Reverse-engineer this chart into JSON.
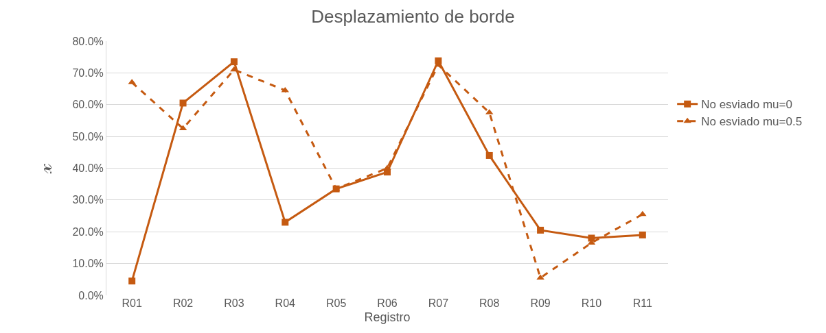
{
  "chart_data": {
    "type": "line",
    "title": "Desplazamiento de borde",
    "xlabel": "Registro",
    "ylabel": "𝓍",
    "categories": [
      "R01",
      "R02",
      "R03",
      "R04",
      "R05",
      "R06",
      "R07",
      "R08",
      "R09",
      "R10",
      "R11"
    ],
    "series": [
      {
        "name": "No esviado mu=0",
        "color": "#c55a11",
        "marker": "square",
        "line_style": "solid",
        "values": [
          4.5,
          60.5,
          73.5,
          23,
          33.5,
          38.8,
          73.8,
          44,
          20.5,
          18,
          19
        ]
      },
      {
        "name": "No esviado mu=0.5",
        "color": "#c55a11",
        "marker": "triangle",
        "line_style": "dashed",
        "values": [
          67,
          52.5,
          71,
          64.5,
          33.5,
          40,
          72.5,
          57.5,
          5.5,
          16.5,
          25.5
        ]
      }
    ],
    "ylim": [
      0,
      80
    ],
    "yticks": [
      {
        "value": 0,
        "label": "0.0%"
      },
      {
        "value": 10,
        "label": "10.0%"
      },
      {
        "value": 20,
        "label": "20.0%"
      },
      {
        "value": 30,
        "label": "30.0%"
      },
      {
        "value": 40,
        "label": "40.0%"
      },
      {
        "value": 50,
        "label": "50.0%"
      },
      {
        "value": 60,
        "label": "60.0%"
      },
      {
        "value": 70,
        "label": "70.0%"
      },
      {
        "value": 80,
        "label": "80.0%"
      }
    ],
    "grid": "y",
    "legend": "right"
  }
}
